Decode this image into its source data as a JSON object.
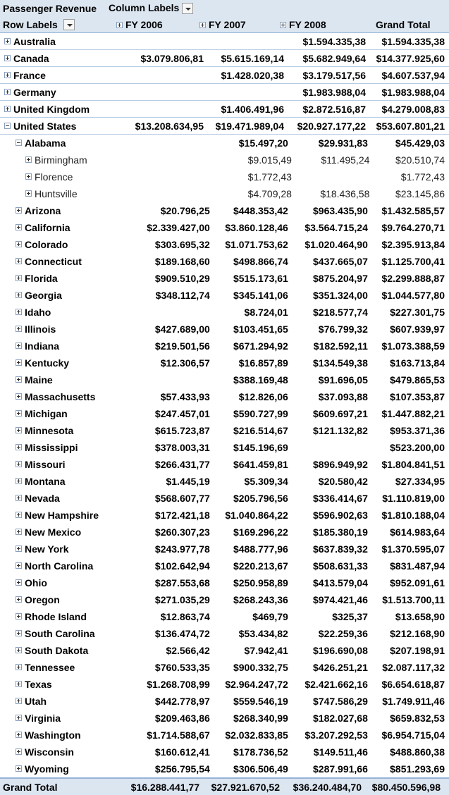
{
  "pivot": {
    "title": "Passenger Revenue",
    "column_labels": "Column Labels",
    "row_labels": "Row Labels",
    "columns": [
      "FY 2006",
      "FY 2007",
      "FY 2008"
    ],
    "grand_total_label": "Grand Total",
    "rows": [
      {
        "label": "Australia",
        "level": 0,
        "toggle": "plus",
        "values": [
          "",
          "",
          "$1.594.335,38",
          "$1.594.335,38"
        ]
      },
      {
        "label": "Canada",
        "level": 0,
        "toggle": "plus",
        "values": [
          "$3.079.806,81",
          "$5.615.169,14",
          "$5.682.949,64",
          "$14.377.925,60"
        ]
      },
      {
        "label": "France",
        "level": 0,
        "toggle": "plus",
        "values": [
          "",
          "$1.428.020,38",
          "$3.179.517,56",
          "$4.607.537,94"
        ]
      },
      {
        "label": "Germany",
        "level": 0,
        "toggle": "plus",
        "values": [
          "",
          "",
          "$1.983.988,04",
          "$1.983.988,04"
        ]
      },
      {
        "label": "United Kingdom",
        "level": 0,
        "toggle": "plus",
        "values": [
          "",
          "$1.406.491,96",
          "$2.872.516,87",
          "$4.279.008,83"
        ]
      },
      {
        "label": "United States",
        "level": 0,
        "toggle": "minus",
        "values": [
          "$13.208.634,95",
          "$19.471.989,04",
          "$20.927.177,22",
          "$53.607.801,21"
        ]
      },
      {
        "label": "Alabama",
        "level": 1,
        "toggle": "minus",
        "values": [
          "",
          "$15.497,20",
          "$29.931,83",
          "$45.429,03"
        ]
      },
      {
        "label": "Birmingham",
        "level": 2,
        "toggle": "plus",
        "values": [
          "",
          "$9.015,49",
          "$11.495,24",
          "$20.510,74"
        ]
      },
      {
        "label": "Florence",
        "level": 2,
        "toggle": "plus",
        "values": [
          "",
          "$1.772,43",
          "",
          "$1.772,43"
        ]
      },
      {
        "label": "Huntsville",
        "level": 2,
        "toggle": "plus",
        "values": [
          "",
          "$4.709,28",
          "$18.436,58",
          "$23.145,86"
        ]
      },
      {
        "label": "Arizona",
        "level": 1,
        "toggle": "plus",
        "values": [
          "$20.796,25",
          "$448.353,42",
          "$963.435,90",
          "$1.432.585,57"
        ]
      },
      {
        "label": "California",
        "level": 1,
        "toggle": "plus",
        "values": [
          "$2.339.427,00",
          "$3.860.128,46",
          "$3.564.715,24",
          "$9.764.270,71"
        ]
      },
      {
        "label": "Colorado",
        "level": 1,
        "toggle": "plus",
        "values": [
          "$303.695,32",
          "$1.071.753,62",
          "$1.020.464,90",
          "$2.395.913,84"
        ]
      },
      {
        "label": "Connecticut",
        "level": 1,
        "toggle": "plus",
        "values": [
          "$189.168,60",
          "$498.866,74",
          "$437.665,07",
          "$1.125.700,41"
        ]
      },
      {
        "label": "Florida",
        "level": 1,
        "toggle": "plus",
        "values": [
          "$909.510,29",
          "$515.173,61",
          "$875.204,97",
          "$2.299.888,87"
        ]
      },
      {
        "label": "Georgia",
        "level": 1,
        "toggle": "plus",
        "values": [
          "$348.112,74",
          "$345.141,06",
          "$351.324,00",
          "$1.044.577,80"
        ]
      },
      {
        "label": "Idaho",
        "level": 1,
        "toggle": "plus",
        "values": [
          "",
          "$8.724,01",
          "$218.577,74",
          "$227.301,75"
        ]
      },
      {
        "label": "Illinois",
        "level": 1,
        "toggle": "plus",
        "values": [
          "$427.689,00",
          "$103.451,65",
          "$76.799,32",
          "$607.939,97"
        ]
      },
      {
        "label": "Indiana",
        "level": 1,
        "toggle": "plus",
        "values": [
          "$219.501,56",
          "$671.294,92",
          "$182.592,11",
          "$1.073.388,59"
        ]
      },
      {
        "label": "Kentucky",
        "level": 1,
        "toggle": "plus",
        "values": [
          "$12.306,57",
          "$16.857,89",
          "$134.549,38",
          "$163.713,84"
        ]
      },
      {
        "label": "Maine",
        "level": 1,
        "toggle": "plus",
        "values": [
          "",
          "$388.169,48",
          "$91.696,05",
          "$479.865,53"
        ]
      },
      {
        "label": "Massachusetts",
        "level": 1,
        "toggle": "plus",
        "values": [
          "$57.433,93",
          "$12.826,06",
          "$37.093,88",
          "$107.353,87"
        ]
      },
      {
        "label": "Michigan",
        "level": 1,
        "toggle": "plus",
        "values": [
          "$247.457,01",
          "$590.727,99",
          "$609.697,21",
          "$1.447.882,21"
        ]
      },
      {
        "label": "Minnesota",
        "level": 1,
        "toggle": "plus",
        "values": [
          "$615.723,87",
          "$216.514,67",
          "$121.132,82",
          "$953.371,36"
        ]
      },
      {
        "label": "Mississippi",
        "level": 1,
        "toggle": "plus",
        "values": [
          "$378.003,31",
          "$145.196,69",
          "",
          "$523.200,00"
        ]
      },
      {
        "label": "Missouri",
        "level": 1,
        "toggle": "plus",
        "values": [
          "$266.431,77",
          "$641.459,81",
          "$896.949,92",
          "$1.804.841,51"
        ]
      },
      {
        "label": "Montana",
        "level": 1,
        "toggle": "plus",
        "values": [
          "$1.445,19",
          "$5.309,34",
          "$20.580,42",
          "$27.334,95"
        ]
      },
      {
        "label": "Nevada",
        "level": 1,
        "toggle": "plus",
        "values": [
          "$568.607,77",
          "$205.796,56",
          "$336.414,67",
          "$1.110.819,00"
        ]
      },
      {
        "label": "New Hampshire",
        "level": 1,
        "toggle": "plus",
        "values": [
          "$172.421,18",
          "$1.040.864,22",
          "$596.902,63",
          "$1.810.188,04"
        ]
      },
      {
        "label": "New Mexico",
        "level": 1,
        "toggle": "plus",
        "values": [
          "$260.307,23",
          "$169.296,22",
          "$185.380,19",
          "$614.983,64"
        ]
      },
      {
        "label": "New York",
        "level": 1,
        "toggle": "plus",
        "values": [
          "$243.977,78",
          "$488.777,96",
          "$637.839,32",
          "$1.370.595,07"
        ]
      },
      {
        "label": "North Carolina",
        "level": 1,
        "toggle": "plus",
        "values": [
          "$102.642,94",
          "$220.213,67",
          "$508.631,33",
          "$831.487,94"
        ]
      },
      {
        "label": "Ohio",
        "level": 1,
        "toggle": "plus",
        "values": [
          "$287.553,68",
          "$250.958,89",
          "$413.579,04",
          "$952.091,61"
        ]
      },
      {
        "label": "Oregon",
        "level": 1,
        "toggle": "plus",
        "values": [
          "$271.035,29",
          "$268.243,36",
          "$974.421,46",
          "$1.513.700,11"
        ]
      },
      {
        "label": "Rhode Island",
        "level": 1,
        "toggle": "plus",
        "values": [
          "$12.863,74",
          "$469,79",
          "$325,37",
          "$13.658,90"
        ]
      },
      {
        "label": "South Carolina",
        "level": 1,
        "toggle": "plus",
        "values": [
          "$136.474,72",
          "$53.434,82",
          "$22.259,36",
          "$212.168,90"
        ]
      },
      {
        "label": "South Dakota",
        "level": 1,
        "toggle": "plus",
        "values": [
          "$2.566,42",
          "$7.942,41",
          "$196.690,08",
          "$207.198,91"
        ]
      },
      {
        "label": "Tennessee",
        "level": 1,
        "toggle": "plus",
        "values": [
          "$760.533,35",
          "$900.332,75",
          "$426.251,21",
          "$2.087.117,32"
        ]
      },
      {
        "label": "Texas",
        "level": 1,
        "toggle": "plus",
        "values": [
          "$1.268.708,99",
          "$2.964.247,72",
          "$2.421.662,16",
          "$6.654.618,87"
        ]
      },
      {
        "label": "Utah",
        "level": 1,
        "toggle": "plus",
        "values": [
          "$442.778,97",
          "$559.546,19",
          "$747.586,29",
          "$1.749.911,46"
        ]
      },
      {
        "label": "Virginia",
        "level": 1,
        "toggle": "plus",
        "values": [
          "$209.463,86",
          "$268.340,99",
          "$182.027,68",
          "$659.832,53"
        ]
      },
      {
        "label": "Washington",
        "level": 1,
        "toggle": "plus",
        "values": [
          "$1.714.588,67",
          "$2.032.833,85",
          "$3.207.292,53",
          "$6.954.715,04"
        ]
      },
      {
        "label": "Wisconsin",
        "level": 1,
        "toggle": "plus",
        "values": [
          "$160.612,41",
          "$178.736,52",
          "$149.511,46",
          "$488.860,38"
        ]
      },
      {
        "label": "Wyoming",
        "level": 1,
        "toggle": "plus",
        "values": [
          "$256.795,54",
          "$306.506,49",
          "$287.991,66",
          "$851.293,69"
        ]
      }
    ],
    "grand_total_values": [
      "$16.288.441,77",
      "$27.921.670,52",
      "$36.240.484,70",
      "$80.450.596,98"
    ]
  }
}
